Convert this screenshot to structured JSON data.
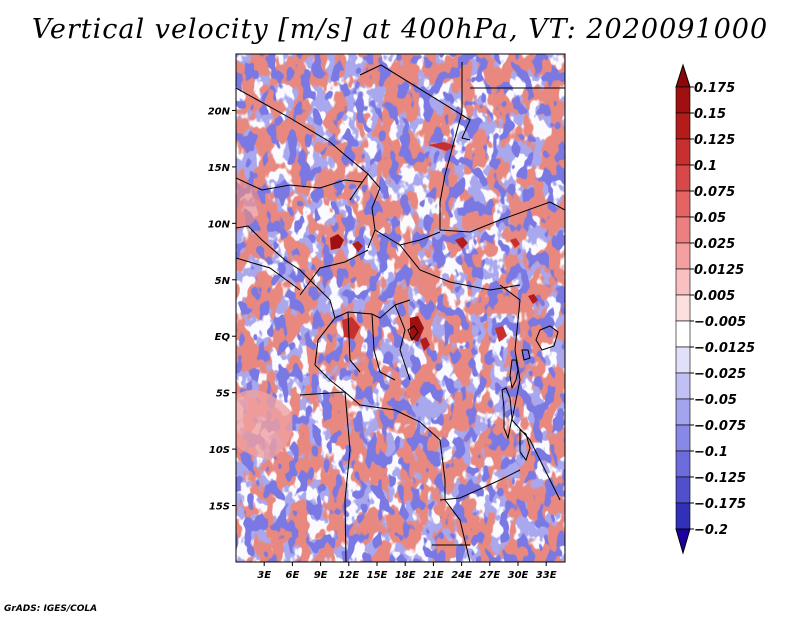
{
  "title": "Vertical velocity [m/s] at 400hPa, VT: 2020091000",
  "credit": "GrADS: IGES/COLA",
  "map": {
    "lon_range": [
      0,
      35
    ],
    "lat_range": [
      -20,
      25
    ],
    "lat_ticks": [
      {
        "value": 20,
        "label": "20N"
      },
      {
        "value": 15,
        "label": "15N"
      },
      {
        "value": 10,
        "label": "10N"
      },
      {
        "value": 5,
        "label": "5N"
      },
      {
        "value": 0,
        "label": "EQ"
      },
      {
        "value": -5,
        "label": "5S"
      },
      {
        "value": -10,
        "label": "10S"
      },
      {
        "value": -15,
        "label": "15S"
      }
    ],
    "lon_ticks": [
      {
        "value": 3,
        "label": "3E"
      },
      {
        "value": 6,
        "label": "6E"
      },
      {
        "value": 9,
        "label": "9E"
      },
      {
        "value": 12,
        "label": "12E"
      },
      {
        "value": 15,
        "label": "15E"
      },
      {
        "value": 18,
        "label": "18E"
      },
      {
        "value": 21,
        "label": "21E"
      },
      {
        "value": 24,
        "label": "24E"
      },
      {
        "value": 27,
        "label": "27E"
      },
      {
        "value": 30,
        "label": "30E"
      },
      {
        "value": 33,
        "label": "33E"
      }
    ]
  },
  "colorbar": {
    "levels": [
      {
        "label": "0.175",
        "color": "#a01010"
      },
      {
        "label": "0.15",
        "color": "#b41c1c"
      },
      {
        "label": "0.125",
        "color": "#c83030"
      },
      {
        "label": "0.1",
        "color": "#d84848"
      },
      {
        "label": "0.075",
        "color": "#e46464"
      },
      {
        "label": "0.05",
        "color": "#ec8080"
      },
      {
        "label": "0.025",
        "color": "#f4a0a0"
      },
      {
        "label": "0.0125",
        "color": "#f8c0c0"
      },
      {
        "label": "0.005",
        "color": "#fce0e0"
      },
      {
        "label": "−0.005",
        "color": "#ffffff"
      },
      {
        "label": "−0.0125",
        "color": "#e0e0fa"
      },
      {
        "label": "−0.025",
        "color": "#c0c0f4"
      },
      {
        "label": "−0.05",
        "color": "#a4a4ee"
      },
      {
        "label": "−0.075",
        "color": "#8888e6"
      },
      {
        "label": "−0.1",
        "color": "#6c6cdc"
      },
      {
        "label": "−0.125",
        "color": "#5050cc"
      },
      {
        "label": "−0.175",
        "color": "#3030b8"
      },
      {
        "label": "−0.2",
        "color": "#1414a0"
      }
    ],
    "top_color": "#8c0808",
    "bottom_color": "#1e00a0"
  }
}
